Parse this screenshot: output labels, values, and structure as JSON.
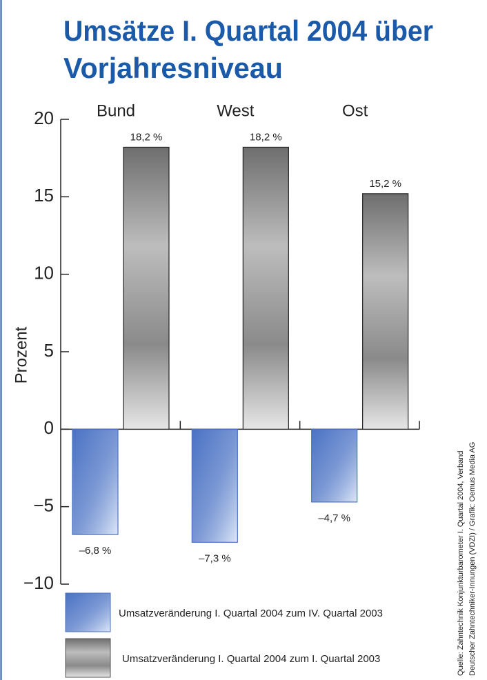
{
  "chart_data": {
    "type": "bar",
    "title": [
      "Umsätze I. Quartal 2004 über",
      "Vorjahresniveau"
    ],
    "y_label": "Prozent",
    "categories": [
      "Bund",
      "West",
      "Ost"
    ],
    "series": [
      {
        "name": "Umsatzveränderung I. Quartal 2004 zum IV. Quartal 2003",
        "color": "#4a72c4",
        "values": [
          -6.8,
          -7.3,
          -4.7
        ],
        "value_labels": [
          "–6,8 %",
          "–7,3 %",
          "–4,7 %"
        ]
      },
      {
        "name": "Umsatzveränderung I. Quartal 2004 zum I. Quartal 2003",
        "color": "#6e6e6e",
        "values": [
          18.2,
          18.2,
          15.2
        ],
        "value_labels": [
          "18,2 %",
          "18,2 %",
          "15,2 %"
        ]
      }
    ],
    "ylim": [
      -10,
      20
    ],
    "yticks": [
      {
        "value": -10,
        "label": "−10"
      },
      {
        "value": -5,
        "label": "−5"
      },
      0,
      5,
      10,
      15,
      20
    ],
    "grid": false,
    "source": [
      "Quelle: Zahntechnik Konjunkturbarometer I. Quartal 2004, Verband",
      "Deutscher Zahntechniker-Innungen (VDZI) / Grafik: Oemus Media AG"
    ]
  }
}
